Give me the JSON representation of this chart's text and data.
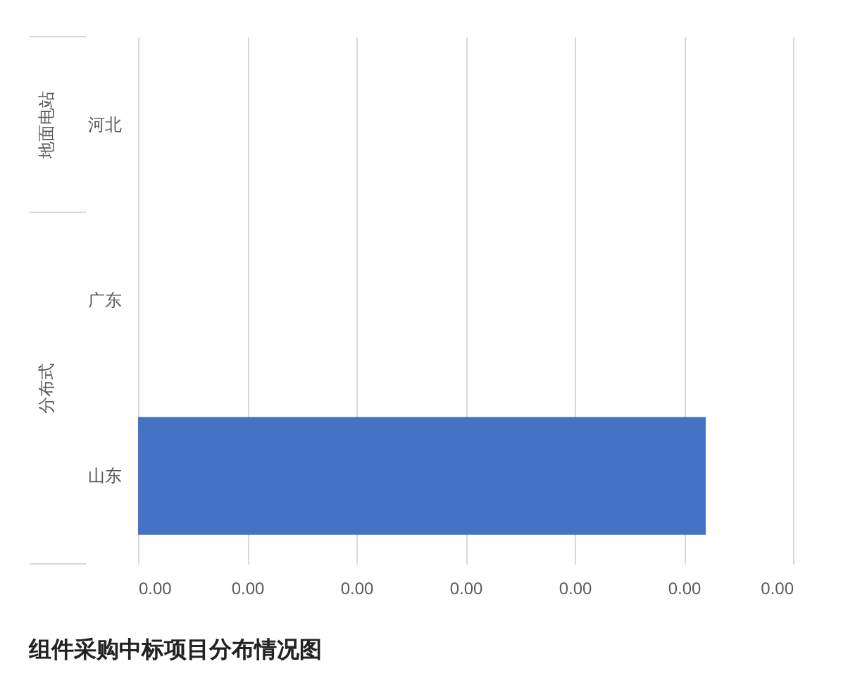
{
  "chart_data": {
    "type": "bar",
    "orientation": "horizontal",
    "title": "组件采购中标项目分布情况图",
    "categories": [
      "河北",
      "广东",
      "山东"
    ],
    "values": [
      null,
      null,
      0.0026
    ],
    "color": "#4472c4",
    "xlim": [
      0,
      0.003
    ],
    "xticks": [
      {
        "value": 0,
        "label": "0.00"
      },
      {
        "value": 0.0005,
        "label": "0.00"
      },
      {
        "value": 0.001,
        "label": "0.00"
      },
      {
        "value": 0.0015,
        "label": "0.00"
      },
      {
        "value": 0.002,
        "label": "0.00"
      },
      {
        "value": 0.0025,
        "label": "0.00"
      },
      {
        "value": 0.003,
        "label": "0.00"
      }
    ],
    "annotations": [
      "地面电站",
      "分布式"
    ],
    "grid": "x"
  }
}
